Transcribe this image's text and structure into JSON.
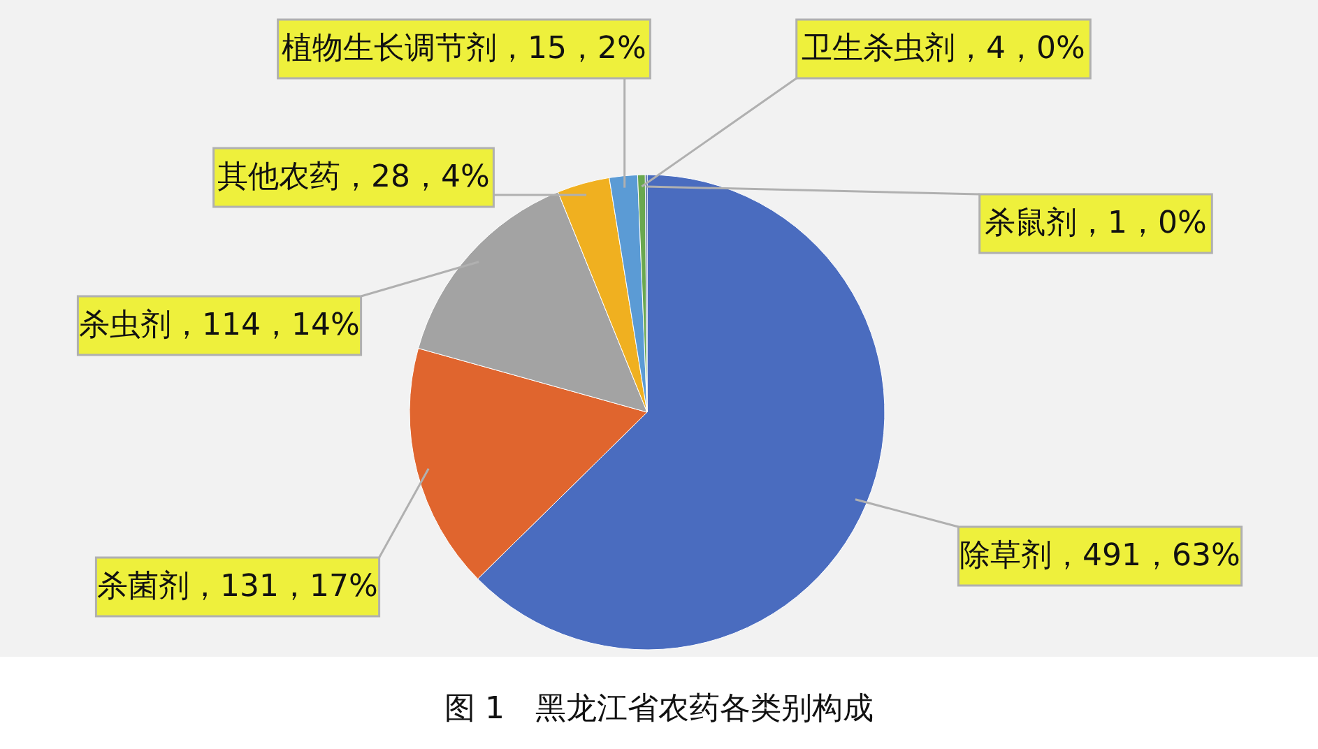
{
  "chart_data": {
    "type": "pie",
    "title": "图 1　黑龙江省农药各类别构成",
    "categories": [
      "除草剂",
      "杀菌剂",
      "杀虫剂",
      "其他农药",
      "植物生长调节剂",
      "卫生杀虫剂",
      "杀鼠剂"
    ],
    "values": [
      491,
      131,
      114,
      28,
      15,
      4,
      1
    ],
    "colors": [
      "#4a6cbf",
      "#e0652e",
      "#a3a3a3",
      "#f0b020",
      "#5b9bd5",
      "#6aa84f",
      "#2f4f8f"
    ],
    "value_labels": [
      "，491，63%",
      "，131，17%",
      "，114，14%",
      "，28，4%",
      "，15，2%",
      "，4，0%",
      "，1，0%"
    ]
  }
}
